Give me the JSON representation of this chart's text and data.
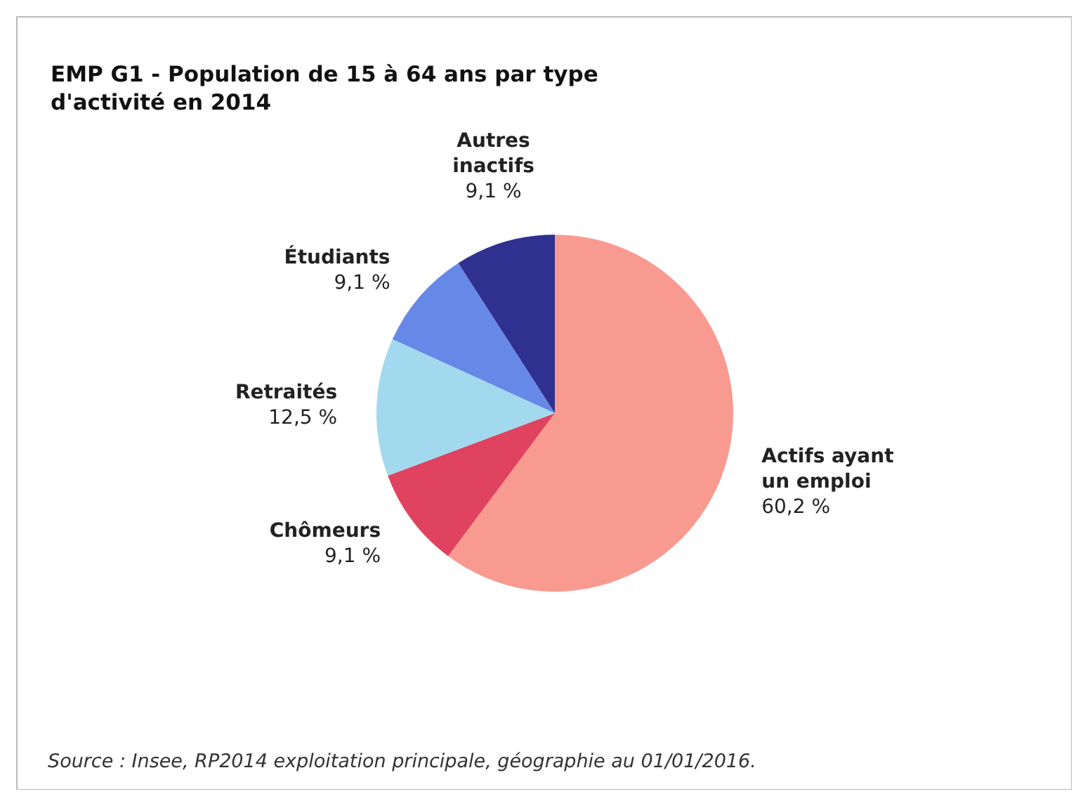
{
  "chart_data": {
    "type": "pie",
    "title": "EMP G1 - Population de 15 à 64 ans par type d'activité en 2014",
    "categories": [
      "Actifs ayant un emploi",
      "Chômeurs",
      "Retraités",
      "Étudiants",
      "Autres inactifs"
    ],
    "values": [
      60.2,
      9.1,
      12.5,
      9.1,
      9.1
    ],
    "value_labels": [
      "60,2 %",
      "9,1 %",
      "12,5 %",
      "9,1 %",
      "9,1 %"
    ],
    "colors": [
      "#f99a90",
      "#e0435f",
      "#a3d9ef",
      "#6688e6",
      "#303090"
    ],
    "annotations": [
      "Source : Insee, RP2014 exploitation principale, géographie au 01/01/2016."
    ]
  }
}
